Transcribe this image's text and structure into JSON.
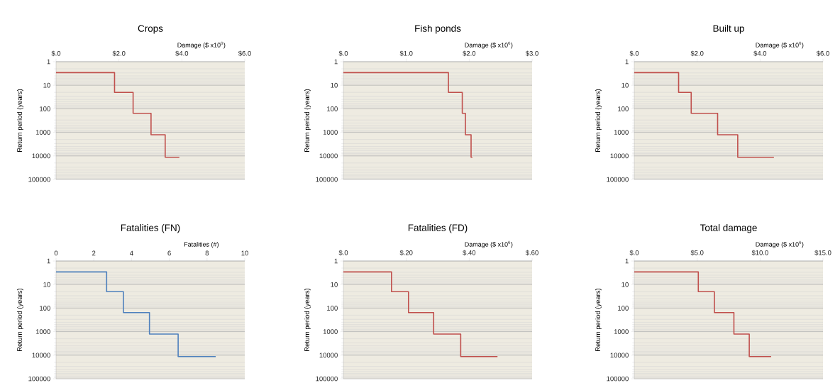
{
  "chart_data": [
    {
      "type": "step",
      "title": "Crops",
      "xlabel": "Damage  ($ x10$^{6}$)",
      "ylabel": "Return period (years)",
      "color": "#c0504d",
      "x": [
        0,
        1.86,
        2.45,
        3.02,
        3.47,
        3.92
      ],
      "values": [
        2.9,
        20,
        155,
        1260,
        11500,
        11500
      ],
      "xlim": [
        0,
        6
      ],
      "xticks": [
        {
          "value": 0,
          "label": "$.0"
        },
        {
          "value": 2,
          "label": "$2.0"
        },
        {
          "value": 4,
          "label": "$4.0"
        },
        {
          "value": 6,
          "label": "$6.0"
        }
      ],
      "ylim": [
        100000,
        1
      ],
      "yticks": [
        1,
        10,
        100,
        1000,
        10000,
        100000
      ],
      "log": true,
      "grid": "y"
    },
    {
      "type": "step",
      "title": "Fish ponds",
      "xlabel": "Damage  ($ x10$^{6}$)",
      "ylabel": "Return period (years)",
      "color": "#c0504d",
      "x": [
        0,
        1.67,
        1.89,
        1.94,
        2.03,
        2.05
      ],
      "values": [
        2.9,
        20,
        155,
        1260,
        11500,
        11500
      ],
      "xlim": [
        0,
        3
      ],
      "xticks": [
        {
          "value": 0,
          "label": "$.0"
        },
        {
          "value": 1,
          "label": "$1.0"
        },
        {
          "value": 2,
          "label": "$2.0"
        },
        {
          "value": 3,
          "label": "$3.0"
        }
      ],
      "ylim": [
        100000,
        1
      ],
      "yticks": [
        1,
        10,
        100,
        1000,
        10000,
        100000
      ],
      "log": true,
      "grid": "y"
    },
    {
      "type": "step",
      "title": "Built up",
      "xlabel": "Damage  ($ x10$^{6}$)",
      "ylabel": "Return period (years)",
      "color": "#c0504d",
      "x": [
        0,
        1.41,
        1.81,
        2.65,
        3.29,
        4.44
      ],
      "values": [
        2.9,
        20,
        155,
        1260,
        11500,
        11500
      ],
      "xlim": [
        0,
        6
      ],
      "xticks": [
        {
          "value": 0,
          "label": "$.0"
        },
        {
          "value": 2,
          "label": "$2.0"
        },
        {
          "value": 4,
          "label": "$4.0"
        },
        {
          "value": 6,
          "label": "$6.0"
        }
      ],
      "ylim": [
        100000,
        1
      ],
      "yticks": [
        1,
        10,
        100,
        1000,
        10000,
        100000
      ],
      "log": true,
      "grid": "y"
    },
    {
      "type": "step",
      "title": "Fatalities  (FN)",
      "xlabel": "Fatalities (#)",
      "ylabel": "Return period (years)",
      "color": "#4f81bd",
      "x": [
        0,
        2.68,
        3.57,
        4.95,
        6.47,
        8.46
      ],
      "values": [
        2.9,
        20,
        155,
        1260,
        11500,
        11500
      ],
      "xlim": [
        0,
        10
      ],
      "xticks": [
        0,
        2,
        4,
        6,
        8,
        10
      ],
      "ylim": [
        100000,
        1
      ],
      "yticks": [
        1,
        10,
        100,
        1000,
        10000,
        100000
      ],
      "log": true,
      "grid": "y"
    },
    {
      "type": "step",
      "title": "Fatalities  (FD)",
      "xlabel": "Damage  ($ x10$^{6}$)",
      "ylabel": "Return period (years)",
      "color": "#c0504d",
      "x": [
        0,
        0.153,
        0.207,
        0.287,
        0.373,
        0.49
      ],
      "values": [
        2.9,
        20,
        155,
        1260,
        11500,
        11500
      ],
      "xlim": [
        0,
        0.6
      ],
      "xticks": [
        {
          "value": 0,
          "label": "$.0"
        },
        {
          "value": 0.2,
          "label": "$.20"
        },
        {
          "value": 0.4,
          "label": "$.40"
        },
        {
          "value": 0.6,
          "label": "$.60"
        }
      ],
      "ylim": [
        100000,
        1
      ],
      "yticks": [
        1,
        10,
        100,
        1000,
        10000,
        100000
      ],
      "log": true,
      "grid": "y"
    },
    {
      "type": "step",
      "title": "Total damage",
      "xlabel": "Damage  ($ x10$^{6}$)",
      "ylabel": "Return period (years)",
      "color": "#c0504d",
      "x": [
        0,
        5.09,
        6.37,
        7.92,
        9.14,
        10.88
      ],
      "values": [
        2.9,
        20,
        155,
        1260,
        11500,
        11500
      ],
      "xlim": [
        0,
        15
      ],
      "xticks": [
        {
          "value": 0,
          "label": "$.0"
        },
        {
          "value": 5,
          "label": "$5.0"
        },
        {
          "value": 10,
          "label": "$10.0"
        },
        {
          "value": 15,
          "label": "$15.0"
        }
      ],
      "ylim": [
        100000,
        1
      ],
      "yticks": [
        1,
        10,
        100,
        1000,
        10000,
        100000
      ],
      "log": true,
      "grid": "y"
    }
  ]
}
